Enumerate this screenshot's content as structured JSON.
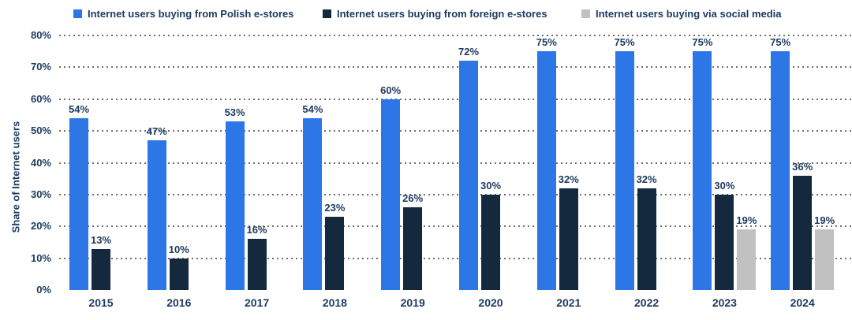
{
  "chart_data": {
    "type": "bar",
    "title": "",
    "xlabel": "",
    "ylabel": "Share of Internet users",
    "ylim": [
      0,
      80
    ],
    "ytick_step": 10,
    "ytick_suffix": "%",
    "grid": "dotted-horizontal",
    "legend_position": "top",
    "categories": [
      "2015",
      "2016",
      "2017",
      "2018",
      "2019",
      "2020",
      "2021",
      "2022",
      "2023",
      "2024"
    ],
    "series": [
      {
        "name": "Internet users buying from Polish e-stores",
        "short": "polish-estores",
        "color": "#2D76E5",
        "values": [
          54,
          47,
          53,
          54,
          60,
          72,
          75,
          75,
          75,
          75
        ]
      },
      {
        "name": "Internet users buying from foreign e-stores",
        "short": "foreign-estores",
        "color": "#15293E",
        "values": [
          13,
          10,
          16,
          23,
          26,
          30,
          32,
          32,
          30,
          36
        ]
      },
      {
        "name": "Internet users buying via social media",
        "short": "social-media",
        "color": "#C1C1C1",
        "values": [
          null,
          null,
          null,
          null,
          null,
          null,
          null,
          null,
          19,
          19
        ]
      }
    ]
  },
  "colors": {
    "text": "#1C3A5E",
    "gridline": "#6F6F6F",
    "background": "#FFFFFF"
  }
}
